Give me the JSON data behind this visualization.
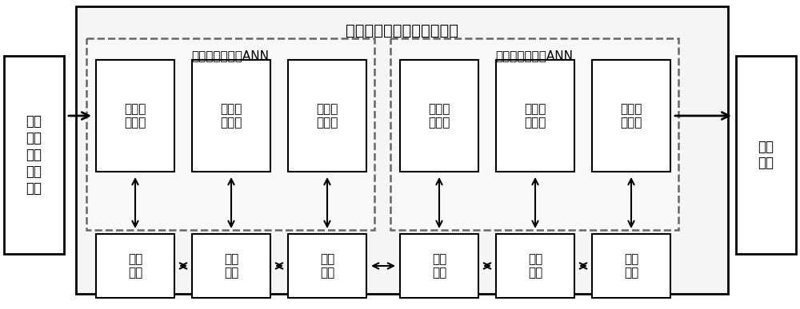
{
  "fig_bg": "#ffffff",
  "title_outer": "分布式的时空异常检测模块",
  "label_left": "数据\n采集\n及预\n处理\n模块",
  "label_right": "输出\n模块",
  "label_spatial": "检测空间异常的ANN",
  "label_temporal": "检测时间异常的ANN",
  "nn_spatial": [
    "输入层\n神经元",
    "隐藏层\n神经元",
    "输出层\n神经元"
  ],
  "nn_temporal": [
    "输入层\n神经元",
    "隐藏层\n神经元",
    "输出层\n神经元"
  ],
  "comm_labels": [
    "通信\n模块",
    "通信\n模块",
    "通信\n模块",
    "通信\n模块",
    "通信\n模块",
    "通信\n模块"
  ],
  "white": "#ffffff",
  "black": "#000000",
  "gray_dash": "#666666",
  "light_gray": "#f5f5f5"
}
